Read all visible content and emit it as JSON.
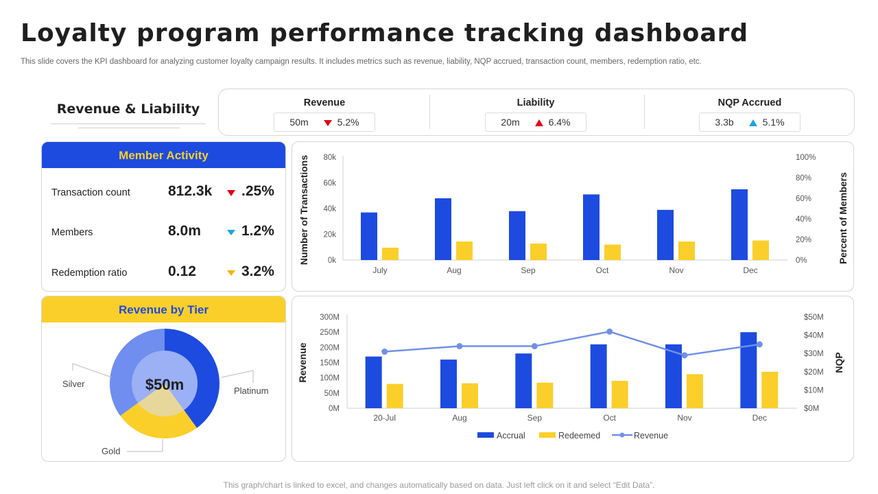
{
  "page": {
    "title": "Loyalty program performance tracking dashboard",
    "subtitle": "This slide covers the KPI dashboard for analyzing customer loyalty campaign results. It includes metrics such as revenue, liability, NQP accrued, transaction count, members, redemption ratio, etc.",
    "footer": "This graph/chart is linked to excel, and changes automatically based on data. Just left click on it and select “Edit Data”."
  },
  "revenue_liability": {
    "title": "Revenue & Liability"
  },
  "kpis": [
    {
      "label": "Revenue",
      "value": "50m",
      "change": "5.2%",
      "direction": "down",
      "color": "#e30613"
    },
    {
      "label": "Liability",
      "value": "20m",
      "change": "6.4%",
      "direction": "up",
      "color": "#e30613"
    },
    {
      "label": "NQP Accrued",
      "value": "3.3b",
      "change": "5.1%",
      "direction": "up",
      "color": "#1aa5e6"
    }
  ],
  "member_activity": {
    "title": "Member Activity",
    "rows": [
      {
        "label": "Transaction count",
        "value": "812.3k",
        "change": ".25%",
        "indicator": "down",
        "color": "#e30613"
      },
      {
        "label": "Members",
        "value": "8.0m",
        "change": "1.2%",
        "indicator": "down",
        "color": "#1aa5e6"
      },
      {
        "label": "Redemption ratio",
        "value": "0.12",
        "change": "3.2%",
        "indicator": "down",
        "color": "#f5b400"
      }
    ]
  },
  "revenue_by_tier": {
    "title": "Revenue by Tier",
    "center_label": "$50m",
    "labels": {
      "silver": "Silver",
      "platinum": "Platinum",
      "gold": "Gold"
    }
  },
  "colors": {
    "blue": "#1d4be0",
    "yellow": "#fbcf2a",
    "line": "#7090e8",
    "light_blue": "#6f8ef0"
  },
  "chart_data": [
    {
      "type": "bar",
      "title": "",
      "categories": [
        "July",
        "Aug",
        "Sep",
        "Oct",
        "Nov",
        "Dec"
      ],
      "series": [
        {
          "name": "Number of Transactions",
          "axis": "left",
          "values": [
            37000,
            48000,
            38000,
            51000,
            39000,
            55000
          ]
        },
        {
          "name": "Percent of Members",
          "axis": "right",
          "values": [
            12,
            18,
            16,
            15,
            18,
            19
          ]
        }
      ],
      "ylabel": "Number of Transactions",
      "y2label": "Percent of Members",
      "ylim": [
        0,
        80000
      ],
      "y2lim": [
        0,
        100
      ],
      "yticks": [
        "0k",
        "20k",
        "40k",
        "60k",
        "80k"
      ],
      "y2ticks": [
        "0%",
        "20%",
        "40%",
        "60%",
        "80%",
        "100%"
      ]
    },
    {
      "type": "bar",
      "title": "",
      "categories": [
        "20-Jul",
        "Aug",
        "Sep",
        "Oct",
        "Nov",
        "Dec"
      ],
      "series": [
        {
          "name": "Accrual",
          "kind": "bar",
          "axis": "left",
          "values": [
            170,
            160,
            180,
            210,
            210,
            250
          ]
        },
        {
          "name": "Redeemed",
          "kind": "bar",
          "axis": "left",
          "values": [
            80,
            82,
            84,
            90,
            112,
            120
          ]
        },
        {
          "name": "Revenue",
          "kind": "line",
          "axis": "right",
          "values": [
            31,
            34,
            34,
            42,
            29,
            35
          ]
        }
      ],
      "ylabel": "Revenue",
      "y2label": "NQP",
      "ylim": [
        0,
        300
      ],
      "y2lim": [
        0,
        50
      ],
      "yticks": [
        "0M",
        "50M",
        "100M",
        "150M",
        "200M",
        "250M",
        "300M"
      ],
      "y2ticks": [
        "$0M",
        "$10M",
        "$20M",
        "$30M",
        "$40M",
        "$50M"
      ]
    },
    {
      "type": "pie",
      "title": "Revenue by Tier",
      "categories": [
        "Platinum",
        "Gold",
        "Silver"
      ],
      "values": [
        40,
        25,
        35
      ],
      "center_label": "$50m"
    }
  ]
}
